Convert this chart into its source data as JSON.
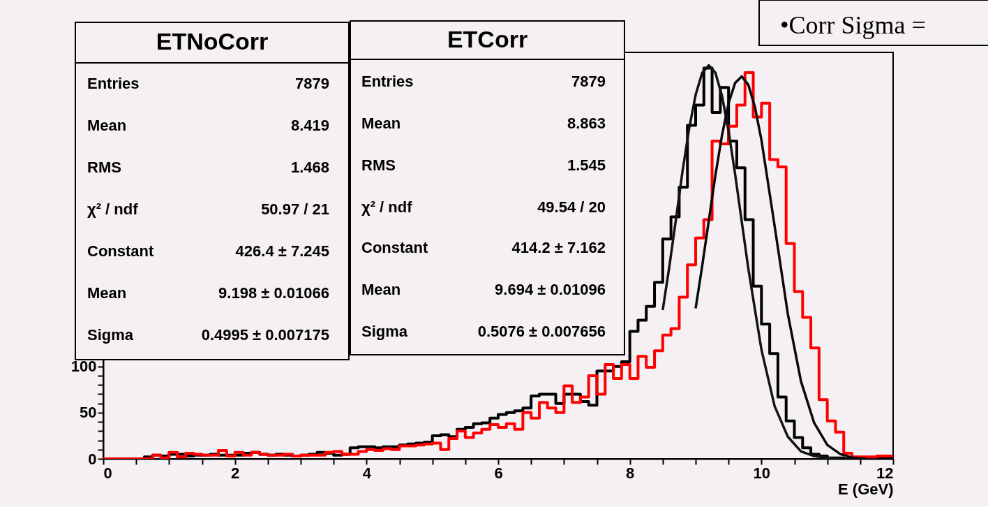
{
  "chart_data": {
    "type": "histogram",
    "xlabel": "E (GeV)",
    "xlim": [
      0,
      12
    ],
    "ylim": [
      0,
      440
    ],
    "xticks": [
      0,
      {
        "value": 0.5,
        "label": null
      },
      {
        "value": 1,
        "label": null
      },
      {
        "value": 1.5,
        "label": null
      },
      2,
      {
        "value": 2.5,
        "label": null
      },
      {
        "value": 3,
        "label": null
      },
      {
        "value": 3.5,
        "label": null
      },
      4,
      {
        "value": 4.5,
        "label": null
      },
      {
        "value": 5,
        "label": null
      },
      {
        "value": 5.5,
        "label": null
      },
      6,
      {
        "value": 6.5,
        "label": null
      },
      {
        "value": 7,
        "label": null
      },
      {
        "value": 7.5,
        "label": null
      },
      8,
      {
        "value": 8.5,
        "label": null
      },
      {
        "value": 9,
        "label": null
      },
      {
        "value": 9.5,
        "label": null
      },
      10,
      {
        "value": 10.5,
        "label": null
      },
      {
        "value": 11,
        "label": null
      },
      {
        "value": 11.5,
        "label": null
      },
      12
    ],
    "yticks": [
      0,
      {
        "value": 10,
        "label": null
      },
      {
        "value": 20,
        "label": null
      },
      {
        "value": 30,
        "label": null
      },
      {
        "value": 40,
        "label": null
      },
      50,
      {
        "value": 60,
        "label": null
      },
      {
        "value": 70,
        "label": null
      },
      {
        "value": 80,
        "label": null
      },
      {
        "value": 90,
        "label": null
      },
      100
    ],
    "grid": false,
    "bins": [
      0,
      0.125,
      0.25,
      0.375,
      0.5,
      0.625,
      0.75,
      0.875,
      1,
      1.125,
      1.25,
      1.375,
      1.5,
      1.625,
      1.75,
      1.875,
      2,
      2.125,
      2.25,
      2.375,
      2.5,
      2.625,
      2.75,
      2.875,
      3,
      3.125,
      3.25,
      3.375,
      3.5,
      3.625,
      3.75,
      3.875,
      4,
      4.125,
      4.25,
      4.375,
      4.5,
      4.625,
      4.75,
      4.875,
      5,
      5.125,
      5.25,
      5.375,
      5.5,
      5.625,
      5.75,
      5.875,
      6,
      6.125,
      6.25,
      6.375,
      6.5,
      6.625,
      6.75,
      6.875,
      7,
      7.125,
      7.25,
      7.375,
      7.5,
      7.625,
      7.75,
      7.875,
      8,
      8.125,
      8.25,
      8.375,
      8.5,
      8.625,
      8.75,
      8.875,
      9,
      9.125,
      9.25,
      9.375,
      9.5,
      9.625,
      9.75,
      9.875,
      10,
      10.125,
      10.25,
      10.375,
      10.5,
      10.625,
      10.75,
      10.875,
      11,
      11.125,
      11.25,
      11.375,
      11.5,
      11.625,
      11.75,
      11.875,
      12
    ],
    "series": [
      {
        "color": "#000000",
        "values": [
          0,
          0,
          0,
          0,
          0,
          2,
          4,
          3,
          5,
          5,
          3,
          4,
          4,
          5,
          4,
          4,
          4,
          6,
          7,
          5,
          4,
          5,
          4,
          3,
          4,
          5,
          7,
          6,
          4,
          5,
          12,
          13,
          13,
          12,
          13,
          13,
          15,
          16,
          17,
          18,
          25,
          26,
          24,
          32,
          34,
          38,
          39,
          44,
          48,
          50,
          52,
          55,
          68,
          70,
          70,
          60,
          70,
          70,
          62,
          58,
          95,
          95,
          100,
          105,
          138,
          150,
          165,
          191,
          238,
          262,
          294,
          361,
          383,
          423,
          375,
          402,
          344,
          315,
          259,
          187,
          146,
          114,
          67,
          41,
          23,
          12,
          5,
          3,
          1,
          1,
          0,
          0,
          0,
          0,
          0,
          0
        ]
      },
      {
        "color": "#ff0000",
        "values": [
          0,
          0,
          0,
          0,
          0,
          0,
          4,
          1,
          7,
          2,
          6,
          5,
          4,
          4,
          9,
          3,
          7,
          4,
          7,
          5,
          4,
          4,
          5,
          3,
          4,
          4,
          4,
          7,
          8,
          5,
          5,
          8,
          10,
          9,
          11,
          10,
          14,
          14,
          15,
          16,
          17,
          10,
          22,
          30,
          23,
          28,
          32,
          37,
          34,
          38,
          32,
          50,
          44,
          61,
          55,
          50,
          79,
          61,
          67,
          90,
          70,
          102,
          87,
          102,
          87,
          111,
          99,
          117,
          134,
          141,
          175,
          210,
          239,
          259,
          344,
          341,
          360,
          383,
          418,
          370,
          385,
          324,
          316,
          233,
          181,
          153,
          120,
          64,
          41,
          29,
          6,
          2,
          2,
          2,
          3,
          3
        ]
      },
      {
        "type": "line",
        "color": "#141414",
        "x": [
          8.5,
          8.6,
          8.7,
          8.8,
          8.9,
          9.0,
          9.1,
          9.2,
          9.3,
          9.4,
          9.5,
          9.6,
          9.8,
          10.0,
          10.2,
          10.4,
          10.6,
          10.8,
          11.0,
          11.2
        ],
        "values": [
          161,
          208,
          259,
          311,
          357,
          394,
          418,
          426,
          418,
          393,
          355,
          308,
          206,
          118,
          57,
          24,
          8,
          3,
          1,
          0
        ]
      },
      {
        "type": "line",
        "color": "#0a0a0a",
        "x": [
          9.0,
          9.1,
          9.2,
          9.3,
          9.4,
          9.5,
          9.6,
          9.7,
          9.8,
          9.9,
          10.0,
          10.2,
          10.4,
          10.6,
          10.8,
          11.0,
          11.2,
          11.4,
          11.6
        ],
        "values": [
          163,
          209,
          258,
          307,
          350,
          385,
          407,
          414,
          405,
          381,
          345,
          252,
          157,
          84,
          39,
          15,
          5,
          1,
          0
        ]
      }
    ],
    "annotations": [
      "•Corr Sigma =",
      "ETNoCorr",
      "Entries",
      "7879",
      "Mean",
      "8.419",
      "RMS",
      "1.468",
      "χ² / ndf",
      "50.97 / 21",
      "Constant",
      "426.4 ± 7.245",
      "Mean",
      "9.198 ± 0.01066",
      "Sigma",
      "0.4995 ± 0.007175",
      "ETCorr",
      "Entries",
      "7879",
      "Mean",
      "8.863",
      "RMS",
      "1.545",
      "χ² / ndf",
      "49.54 / 20",
      "Constant",
      "414.2 ± 7.162",
      "Mean",
      "9.694 ± 0.01096",
      "Sigma",
      "0.5076 ± 0.007656"
    ]
  }
}
